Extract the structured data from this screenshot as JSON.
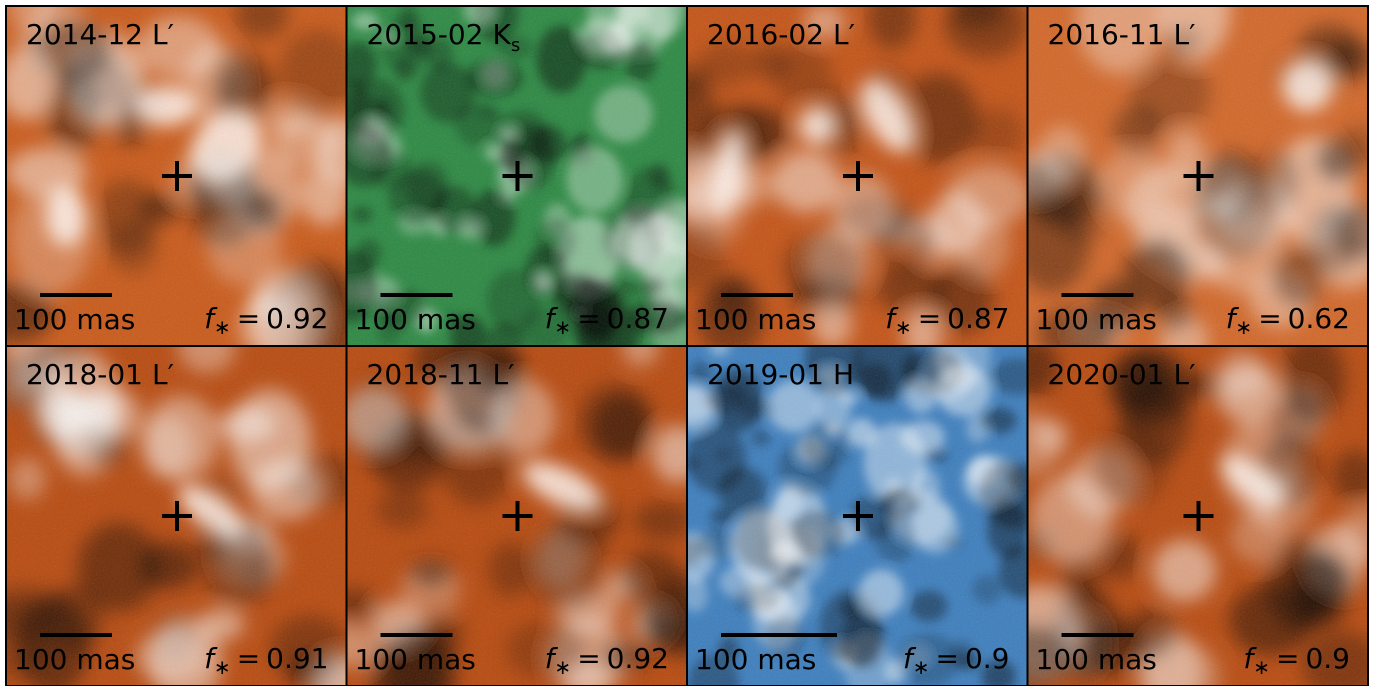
{
  "panels": [
    {
      "epoch": "2014-12",
      "band": "L′",
      "scale_label": "100 mas",
      "stat": {
        "symbol": "f",
        "subscript": "∗",
        "relation": "=",
        "value": 0.92
      },
      "color": "#c95b1c"
    },
    {
      "epoch": "2015-02",
      "band": "K",
      "band_subscript": "s",
      "scale_label": "100 mas",
      "stat": {
        "symbol": "f",
        "subscript": "∗",
        "relation": "=",
        "value": 0.87
      },
      "color": "#2f8a45"
    },
    {
      "epoch": "2016-02",
      "band": "L′",
      "scale_label": "100 mas",
      "stat": {
        "symbol": "f",
        "subscript": "∗",
        "relation": "=",
        "value": 0.87
      },
      "color": "#c4561a"
    },
    {
      "epoch": "2016-11",
      "band": "L′",
      "scale_label": "100 mas",
      "stat": {
        "symbol": "f",
        "subscript": "∗",
        "relation": "=",
        "value": 0.62
      },
      "color": "#d2692c"
    },
    {
      "epoch": "2018-01",
      "band": "L′",
      "scale_label": "100 mas",
      "stat": {
        "symbol": "f",
        "subscript": "∗",
        "relation": "=",
        "value": 0.91
      },
      "color": "#b84c12"
    },
    {
      "epoch": "2018-11",
      "band": "L′",
      "scale_label": "100 mas",
      "stat": {
        "symbol": "f",
        "subscript": "∗",
        "relation": "=",
        "value": 0.92
      },
      "color": "#b84c12"
    },
    {
      "epoch": "2019-01",
      "band": "H",
      "scale_label": "100 mas",
      "stat": {
        "symbol": "f",
        "subscript": "∗",
        "relation": "=",
        "value": 0.9
      },
      "color": "#3f7fbd"
    },
    {
      "epoch": "2020-01",
      "band": "L′",
      "scale_label": "100 mas",
      "stat": {
        "symbol": "f",
        "subscript": "∗",
        "relation": "=",
        "value": 0.9
      },
      "color": "#b84c12"
    }
  ]
}
